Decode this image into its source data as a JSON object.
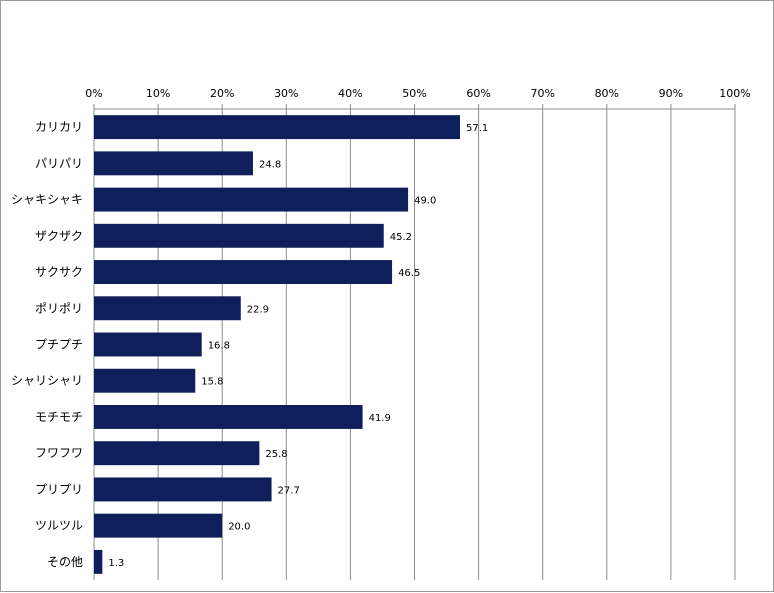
{
  "chart_data": {
    "type": "bar",
    "orientation": "horizontal",
    "categories": [
      "カリカリ",
      "パリパリ",
      "シャキシャキ",
      "ザクザク",
      "サクサク",
      "ポリポリ",
      "プチプチ",
      "シャリシャリ",
      "モチモチ",
      "フワフワ",
      "プリプリ",
      "ツルツル",
      "その他"
    ],
    "values": [
      57.1,
      24.8,
      49.0,
      45.2,
      46.5,
      22.9,
      16.8,
      15.8,
      41.9,
      25.8,
      27.7,
      20.0,
      1.3
    ],
    "value_labels": [
      "57.1",
      "24.8",
      "49.0",
      "45.2",
      "46.5",
      "22.9",
      "16.8",
      "15.8",
      "41.9",
      "25.8",
      "27.7",
      "20.0",
      "1.3"
    ],
    "x_ticks": [
      "0%",
      "10%",
      "20%",
      "30%",
      "40%",
      "50%",
      "60%",
      "70%",
      "80%",
      "90%",
      "100%"
    ],
    "xlim": [
      0,
      100
    ],
    "x_axis_position": "top",
    "grid": true,
    "legend": "none",
    "bar_color": "#0f1f5c",
    "grid_color": "#8c8c8c",
    "title": "",
    "xlabel": "",
    "ylabel": ""
  }
}
